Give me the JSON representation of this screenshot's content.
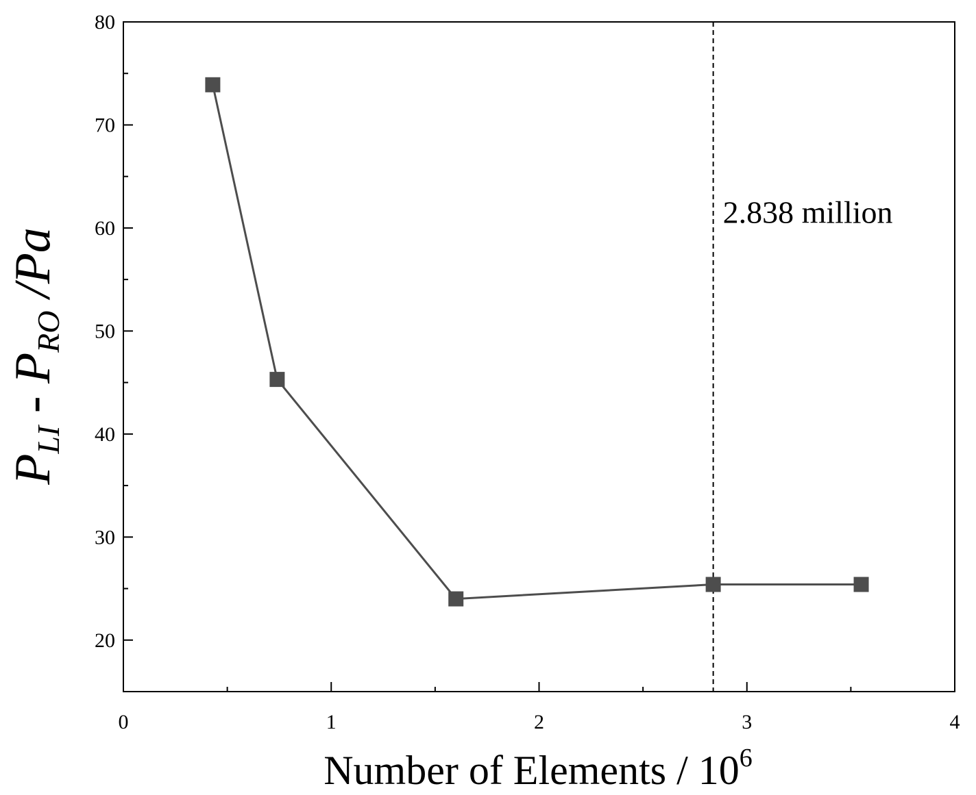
{
  "chart_data": {
    "type": "line",
    "x": [
      0.43,
      0.74,
      1.6,
      2.838,
      3.55
    ],
    "series": [
      {
        "values": [
          73.9,
          45.3,
          24.0,
          25.4,
          25.4
        ]
      }
    ],
    "xlabel": "Number of Elements / 10",
    "xlabel_sup": "6",
    "ylabel_main": "P",
    "ylabel_sub1": "LI",
    "ylabel_mid": " - P",
    "ylabel_sub2": "RO",
    "ylabel_unit": " /Pa",
    "xlim": [
      0,
      4
    ],
    "ylim": [
      15,
      80
    ],
    "xticks": [
      0,
      1,
      2,
      3,
      4
    ],
    "yticks": [
      20,
      30,
      40,
      50,
      60,
      70,
      80
    ],
    "reference_line": {
      "x": 2.838,
      "label": "2.838 million",
      "style": "dashed"
    },
    "grid": false,
    "marker": "square",
    "colors": {
      "series": "#4d4d4d",
      "axis": "#000000"
    }
  }
}
